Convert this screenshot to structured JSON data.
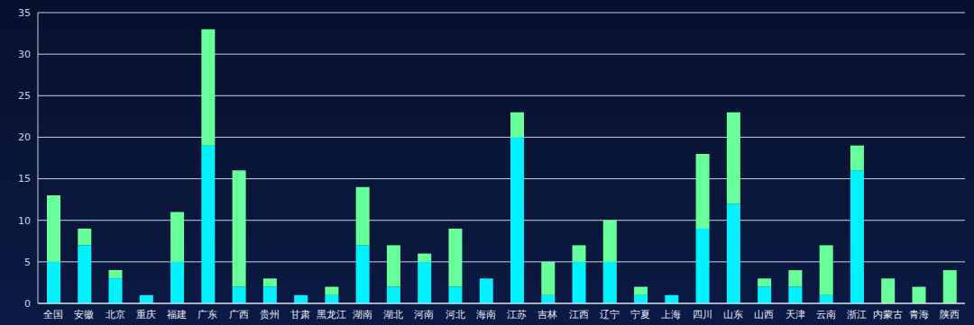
{
  "chart_data": {
    "type": "bar",
    "categories": [
      "全国",
      "安徽",
      "北京",
      "重庆",
      "福建",
      "广东",
      "广西",
      "贵州",
      "甘肃",
      "黑龙江",
      "湖南",
      "湖北",
      "河南",
      "河北",
      "海南",
      "江苏",
      "吉林",
      "江西",
      "辽宁",
      "宁夏",
      "上海",
      "四川",
      "山东",
      "山西",
      "天津",
      "云南",
      "浙江",
      "内蒙古",
      "青海",
      "陕西"
    ],
    "series": [
      {
        "color": "#00f2ff",
        "values": [
          5,
          7,
          3,
          1,
          5,
          19,
          2,
          2,
          1,
          1,
          7,
          2,
          5,
          2,
          3,
          20,
          1,
          5,
          5,
          1,
          1,
          9,
          12,
          2,
          2,
          1,
          16,
          0,
          0,
          0
        ]
      },
      {
        "color": "#66ff99",
        "values": [
          8,
          2,
          1,
          0,
          6,
          14,
          14,
          1,
          0,
          1,
          7,
          5,
          1,
          7,
          0,
          3,
          4,
          2,
          5,
          1,
          0,
          9,
          11,
          1,
          2,
          6,
          3,
          3,
          2,
          4
        ]
      }
    ],
    "ylim": [
      0,
      35
    ],
    "yticks": [
      0,
      5,
      10,
      15,
      20,
      25,
      30,
      35
    ],
    "grid": true,
    "stacked": true
  }
}
